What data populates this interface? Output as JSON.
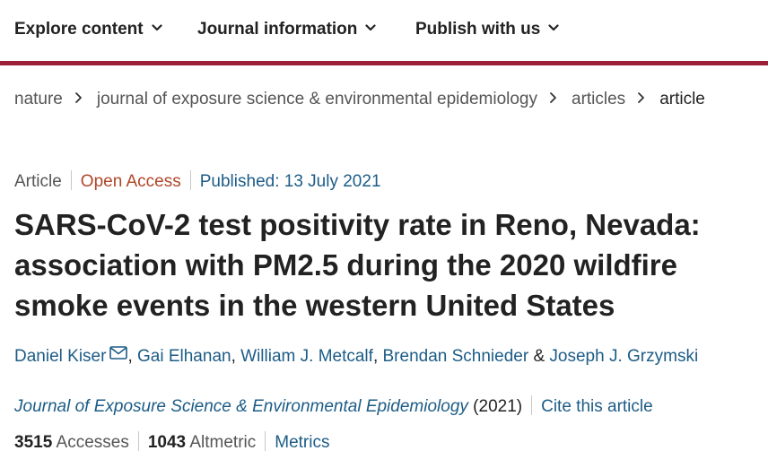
{
  "nav": {
    "items": [
      {
        "label": "Explore content"
      },
      {
        "label": "Journal information"
      },
      {
        "label": "Publish with us"
      }
    ]
  },
  "breadcrumb": {
    "items": [
      "nature",
      "journal of exposure science & environmental epidemiology",
      "articles",
      "article"
    ]
  },
  "meta": {
    "type": "Article",
    "access": "Open Access",
    "published": "Published: 13 July 2021"
  },
  "title": {
    "lines": [
      "SARS-CoV-2 test positivity rate in Reno, Nevada:",
      "association with PM2.5 during the 2020 wildfire",
      "smoke events in the western United States"
    ]
  },
  "authors": {
    "list": [
      "Daniel Kiser",
      "Gai Elhanan",
      "William J. Metcalf",
      "Brendan Schnieder",
      "Joseph J. Grzymski"
    ],
    "separator": ",",
    "ampersand": "&"
  },
  "journal_line": {
    "journal": "Journal of Exposure Science & Environmental Epidemiology",
    "year": "(2021)",
    "cite": "Cite this article"
  },
  "metrics": {
    "accesses_count": "3515",
    "accesses_label": "Accesses",
    "altmetric_count": "1043",
    "altmetric_label": "Altmetric",
    "link": "Metrics"
  },
  "icons": {
    "nav_chevron": "chevron-down-icon",
    "breadcrumb_separator": "chevron-right-icon",
    "corresponding_author": "mail-icon"
  },
  "colors": {
    "brand_bar": "#9b1f37",
    "link": "#1c5c86",
    "open_access": "#b0472a",
    "text": "#222222"
  }
}
